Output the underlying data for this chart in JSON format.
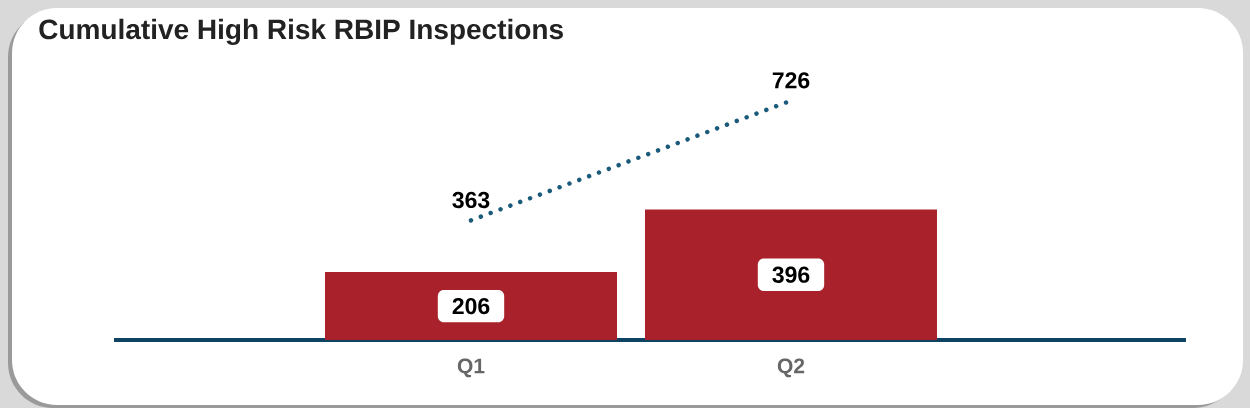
{
  "chart_data": {
    "type": "bar",
    "title": "Cumulative High Risk RBIP Inspections",
    "categories": [
      "Q1",
      "Q2"
    ],
    "series": [
      {
        "color": "#a9222b",
        "values": [
          206,
          396
        ]
      },
      {
        "type": "line",
        "color": "#1b5a7a",
        "values": [
          363,
          726
        ],
        "line_style": "dotted",
        "marker": "none"
      }
    ],
    "data_labels": true
  }
}
